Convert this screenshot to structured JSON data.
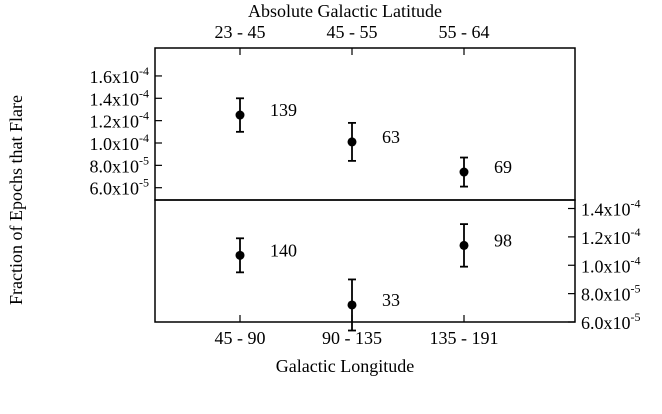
{
  "chart_data": [
    {
      "type": "errorbar",
      "xlabel": "Absolute Galactic Latitude",
      "x_axis_side": "top",
      "ylabel": "Fraction of Epochs that Flare",
      "y_axis_side": "left",
      "categories": [
        "23 - 45",
        "45 - 55",
        "55 - 64"
      ],
      "values": [
        0.000125,
        0.000101,
        7.4e-05
      ],
      "errors": [
        1.5e-05,
        1.7e-05,
        1.3e-05
      ],
      "point_labels": [
        139,
        63,
        69
      ],
      "color": "#000000",
      "ylim": [
        4.9e-05,
        0.000185
      ],
      "yticks": [
        {
          "value": 6e-05,
          "label": "6.0x10-5"
        },
        {
          "value": 8e-05,
          "label": "8.0x10-5"
        },
        {
          "value": 0.0001,
          "label": "1.0x10-4"
        },
        {
          "value": 0.00012,
          "label": "1.2x10-4"
        },
        {
          "value": 0.00014,
          "label": "1.4x10-4"
        },
        {
          "value": 0.00016,
          "label": "1.6x10-4"
        }
      ]
    },
    {
      "type": "errorbar",
      "xlabel": "Galactic Longitude",
      "x_axis_side": "bottom",
      "y_axis_side": "right",
      "categories": [
        "45 - 90",
        "90 - 135",
        "135 - 191"
      ],
      "values": [
        0.000107,
        7.2e-05,
        0.000114
      ],
      "errors": [
        1.2e-05,
        1.8e-05,
        1.5e-05
      ],
      "point_labels": [
        140,
        33,
        98
      ],
      "color": "#000000",
      "ylim": [
        6e-05,
        0.000146
      ],
      "yticks": [
        {
          "value": 6e-05,
          "label": "6.0x10-5"
        },
        {
          "value": 8e-05,
          "label": "8.0x10-5"
        },
        {
          "value": 0.0001,
          "label": "1.0x10-4"
        },
        {
          "value": 0.00012,
          "label": "1.2x10-4"
        },
        {
          "value": 0.00014,
          "label": "1.4x10-4"
        }
      ]
    }
  ]
}
